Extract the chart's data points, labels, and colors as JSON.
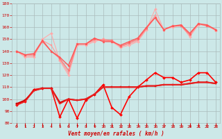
{
  "x": [
    0,
    1,
    2,
    3,
    4,
    5,
    6,
    7,
    8,
    9,
    10,
    11,
    12,
    13,
    14,
    15,
    16,
    17,
    18,
    19,
    20,
    21,
    22,
    23
  ],
  "series": [
    {
      "values": [
        140,
        135,
        135,
        150,
        155,
        132,
        120,
        145,
        145,
        148,
        150,
        148,
        143,
        145,
        148,
        158,
        175,
        158,
        160,
        162,
        152,
        162,
        162,
        157
      ],
      "color": "#ffaaaa",
      "lw": 0.8,
      "marker": "D",
      "ms": 2.0
    },
    {
      "values": [
        140,
        136,
        136,
        149,
        145,
        133,
        122,
        146,
        146,
        149,
        150,
        149,
        144,
        146,
        149,
        159,
        170,
        158,
        161,
        161,
        153,
        163,
        161,
        158
      ],
      "color": "#ff9999",
      "lw": 0.8,
      "marker": "s",
      "ms": 2.0
    },
    {
      "values": [
        140,
        137,
        137,
        148,
        140,
        134,
        124,
        146,
        146,
        150,
        149,
        149,
        144,
        147,
        150,
        159,
        168,
        158,
        161,
        161,
        154,
        163,
        161,
        158
      ],
      "color": "#ff7777",
      "lw": 0.9,
      "marker": "o",
      "ms": 2.0
    },
    {
      "values": [
        140,
        137,
        138,
        149,
        140,
        135,
        128,
        146,
        146,
        151,
        148,
        148,
        145,
        148,
        151,
        160,
        168,
        158,
        161,
        162,
        155,
        163,
        162,
        158
      ],
      "color": "#ff5555",
      "lw": 1.0,
      "marker": "^",
      "ms": 2.0
    },
    {
      "values": [
        95,
        98,
        108,
        109,
        109,
        85,
        100,
        84,
        99,
        104,
        112,
        93,
        87,
        102,
        110,
        116,
        122,
        118,
        118,
        114,
        116,
        122,
        122,
        114
      ],
      "color": "#ff0000",
      "lw": 1.2,
      "marker": "D",
      "ms": 2.0
    },
    {
      "values": [
        96,
        99,
        107,
        109,
        109,
        97,
        100,
        99,
        100,
        104,
        110,
        110,
        110,
        110,
        110,
        111,
        111,
        112,
        112,
        112,
        113,
        114,
        114,
        113
      ],
      "color": "#cc0000",
      "lw": 1.5,
      "marker": "s",
      "ms": 2.0
    },
    {
      "values": [
        95,
        98,
        107,
        109,
        109,
        96,
        100,
        99,
        100,
        104,
        110,
        110,
        110,
        110,
        110,
        111,
        111,
        112,
        112,
        112,
        113,
        114,
        114,
        113
      ],
      "color": "#ee2222",
      "lw": 1.2,
      "marker": null,
      "ms": 0
    }
  ],
  "xlim": [
    -0.5,
    23.5
  ],
  "ylim": [
    80,
    180
  ],
  "yticks": [
    80,
    90,
    100,
    110,
    120,
    130,
    140,
    150,
    160,
    170,
    180
  ],
  "xticks": [
    0,
    1,
    2,
    3,
    4,
    5,
    6,
    7,
    8,
    9,
    10,
    11,
    12,
    13,
    14,
    15,
    16,
    17,
    18,
    19,
    20,
    21,
    22,
    23
  ],
  "xlabel": "Vent moyen/en rafales ( km/h )",
  "bg_color": "#cce8e8",
  "grid_color": "#aabbbb",
  "label_color": "#cc0000",
  "tick_color": "#cc0000"
}
